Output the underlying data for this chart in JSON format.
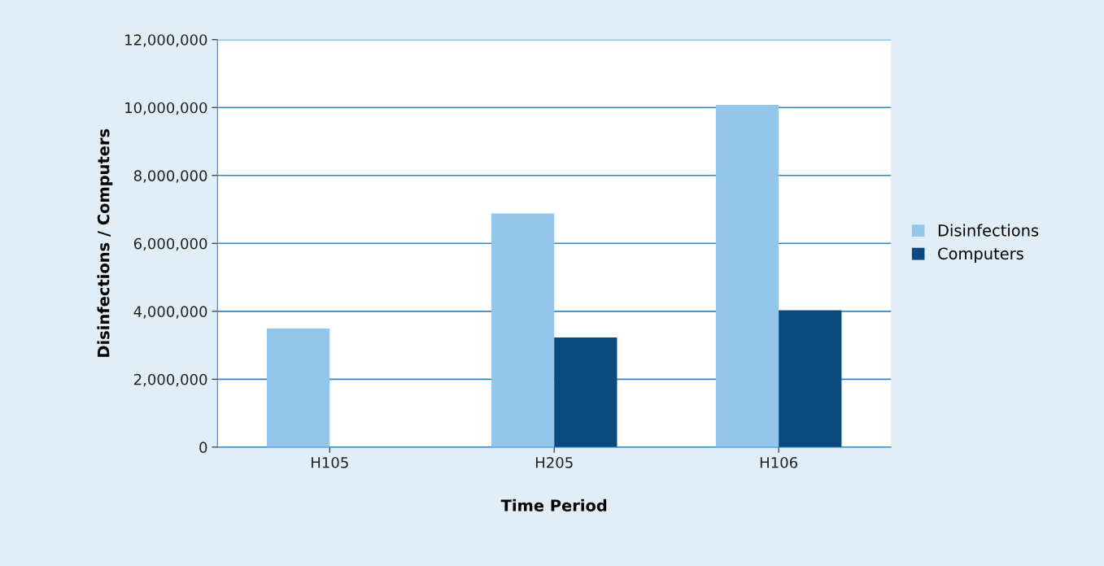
{
  "chart_data": {
    "type": "bar",
    "xlabel": "Time Period",
    "ylabel": "Disinfections / Computers",
    "categories": [
      "H105",
      "H205",
      "H106"
    ],
    "series": [
      {
        "name": "Disinfections",
        "color": "#93c6ea",
        "values": [
          3490000,
          6880000,
          10080000
        ]
      },
      {
        "name": "Computers",
        "color": "#0a4a7e",
        "values": [
          null,
          3230000,
          4030000
        ]
      }
    ],
    "ylim": [
      0,
      12000000
    ],
    "yticks": [
      {
        "value": 0,
        "label": "0"
      },
      {
        "value": 2000000,
        "label": "2,000,000"
      },
      {
        "value": 4000000,
        "label": "4,000,000"
      },
      {
        "value": 6000000,
        "label": "6,000,000"
      },
      {
        "value": 8000000,
        "label": "8,000,000"
      },
      {
        "value": 10000000,
        "label": "10,000,000"
      },
      {
        "value": 12000000,
        "label": "12,000,000"
      }
    ],
    "grid": "y",
    "legend": "right"
  }
}
